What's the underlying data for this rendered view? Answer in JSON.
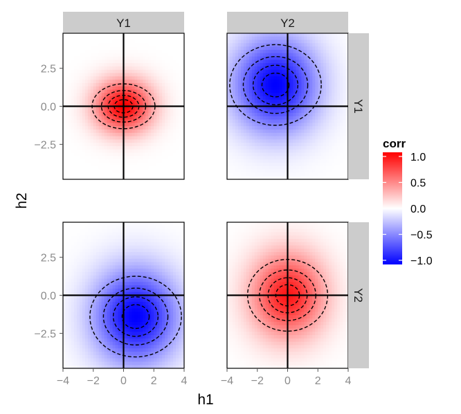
{
  "chart_data": {
    "type": "heatmap",
    "xlabel": "h1",
    "ylabel": "h2",
    "xlim": [
      -4,
      4
    ],
    "ylim": [
      -4.8,
      4.8
    ],
    "x_ticks": [
      -4,
      -2,
      0,
      2,
      4
    ],
    "y_ticks": [
      -2.5,
      0.0,
      2.5
    ],
    "x_tick_labels": [
      "−4",
      "−2",
      "0",
      "2",
      "4"
    ],
    "y_tick_labels": [
      "−2.5",
      "0.0",
      "2.5"
    ],
    "facet_columns": [
      "Y1",
      "Y2"
    ],
    "facet_rows": [
      "Y1",
      "Y2"
    ],
    "grid": false,
    "legend": {
      "title": "corr",
      "position": "right",
      "range": [
        -1.0,
        1.0
      ],
      "breaks": [
        1.0,
        0.5,
        0.0,
        -0.5,
        -1.0
      ],
      "labels": [
        "1.0",
        "0.5",
        "0.0",
        "−0.5",
        "−1.0"
      ],
      "low_color": "#0000ff",
      "mid_color": "#ffffff",
      "high_color": "#ff0000"
    },
    "panels": [
      {
        "row": "Y1",
        "col": "Y1",
        "peak": 1.0,
        "center": [
          0,
          0
        ],
        "spread": [
          2.2,
          2.0
        ],
        "contours": [
          0.1,
          0.25,
          0.45,
          0.7
        ]
      },
      {
        "row": "Y1",
        "col": "Y2",
        "peak": -1.0,
        "center": [
          -0.8,
          1.4
        ],
        "spread": [
          3.2,
          3.6
        ],
        "contours": [
          0.1,
          0.25,
          0.45,
          0.7
        ]
      },
      {
        "row": "Y2",
        "col": "Y1",
        "peak": -1.0,
        "center": [
          0.8,
          -1.4
        ],
        "spread": [
          3.2,
          3.6
        ],
        "contours": [
          0.1,
          0.25,
          0.45,
          0.7
        ]
      },
      {
        "row": "Y2",
        "col": "Y2",
        "peak": 0.9,
        "center": [
          0,
          0
        ],
        "spread": [
          2.8,
          3.2
        ],
        "contours": [
          0.1,
          0.25,
          0.45,
          0.7
        ]
      }
    ]
  }
}
